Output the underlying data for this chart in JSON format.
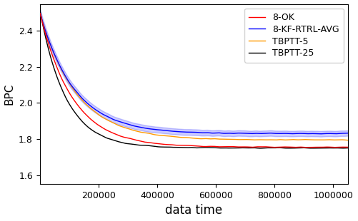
{
  "title": "",
  "xlabel": "data time",
  "ylabel": "BPC",
  "xlim": [
    0,
    1050000
  ],
  "ylim": [
    1.55,
    2.55
  ],
  "yticks": [
    1.6,
    1.8,
    2.0,
    2.2,
    2.4
  ],
  "xticks": [
    200000,
    400000,
    600000,
    800000,
    1000000
  ],
  "xtick_labels": [
    "200000",
    "400000",
    "600000",
    "800000",
    "1000000"
  ],
  "series": [
    {
      "label": "8-OK",
      "color": "#ff0000",
      "lw": 1.0,
      "has_band": false
    },
    {
      "label": "8-KF-RTRL-AVG",
      "color": "#0000ff",
      "lw": 1.0,
      "has_band": true,
      "band_alpha": 0.2
    },
    {
      "label": "TBPTT-5",
      "color": "#ff9900",
      "lw": 1.0,
      "has_band": false
    },
    {
      "label": "TBPTT-25",
      "color": "#000000",
      "lw": 1.0,
      "has_band": false
    }
  ],
  "legend_loc": "upper right",
  "figsize": [
    5.02,
    3.1
  ],
  "dpi": 100
}
